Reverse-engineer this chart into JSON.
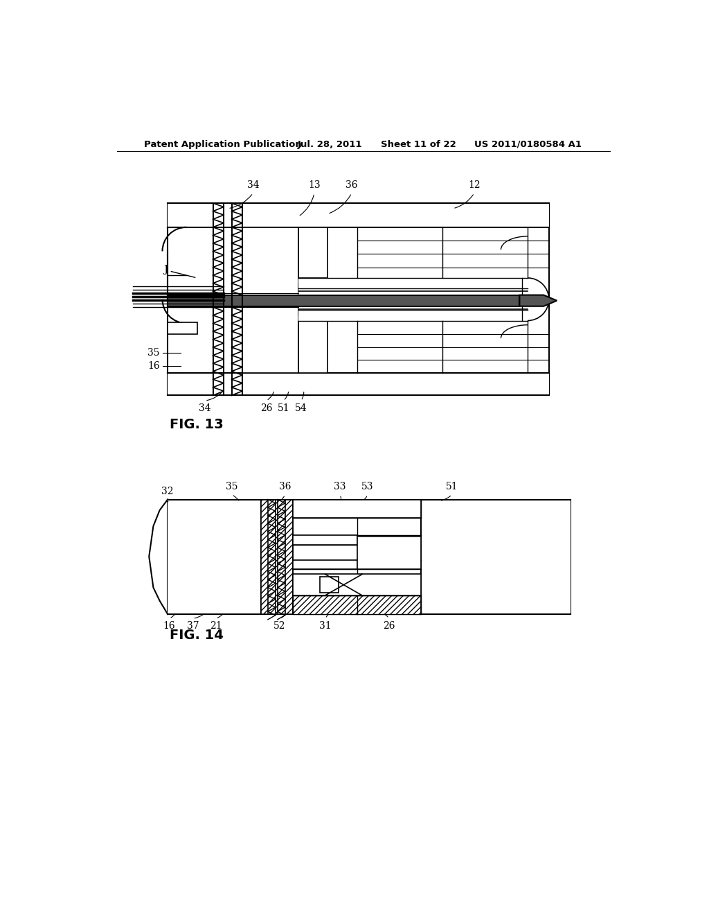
{
  "bg_color": "#ffffff",
  "header_text": "Patent Application Publication",
  "header_date": "Jul. 28, 2011",
  "header_sheet": "Sheet 11 of 22",
  "header_patent": "US 2011/0180584 A1",
  "fig13_label": "FIG. 13",
  "fig14_label": "FIG. 14",
  "line_color": "#000000"
}
